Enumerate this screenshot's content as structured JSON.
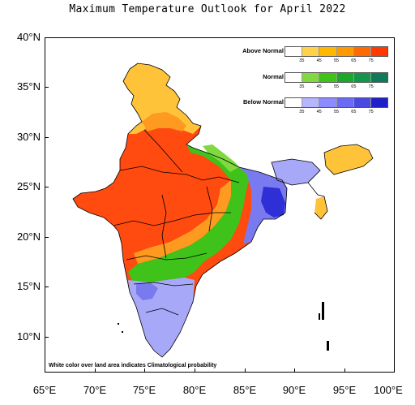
{
  "title": "Maximum Temperature Outlook for April 2022",
  "lat_labels": [
    "40°N",
    "35°N",
    "30°N",
    "25°N",
    "20°N",
    "15°N",
    "10°N"
  ],
  "lon_labels": [
    "65°E",
    "70°E",
    "75°E",
    "80°E",
    "85°E",
    "90°E",
    "95°E",
    "100°E"
  ],
  "legend": {
    "above": {
      "label": "Above Normal",
      "colors": [
        "#ffffff",
        "#ffd24a",
        "#ffb700",
        "#ff9900",
        "#ff6a00",
        "#ff3a00"
      ],
      "ticks": [
        "35",
        "45",
        "55",
        "65",
        "75"
      ]
    },
    "normal": {
      "label": "Normal",
      "colors": [
        "#ffffff",
        "#7fd93f",
        "#3fc21a",
        "#1aa82a",
        "#14964a",
        "#0f7a5a"
      ],
      "ticks": [
        "35",
        "45",
        "55",
        "65",
        "75"
      ]
    },
    "below": {
      "label": "Below Normal",
      "colors": [
        "#ffffff",
        "#b6b6ff",
        "#8c8cff",
        "#6a6af5",
        "#4a4ae0",
        "#1f1fc8"
      ],
      "ticks": [
        "35",
        "45",
        "55",
        "65",
        "75"
      ]
    }
  },
  "footnote": "White color over land area indicates Climatological probability",
  "category_colors": {
    "above_light": "#ffc33a",
    "above_mid": "#ff9a20",
    "above_strong": "#ff4a10",
    "normal_light": "#7fd93f",
    "normal": "#3fc21a",
    "below_light": "#a8a8f8",
    "below_mid": "#7a7af0",
    "below_strong": "#2f2fd8"
  }
}
